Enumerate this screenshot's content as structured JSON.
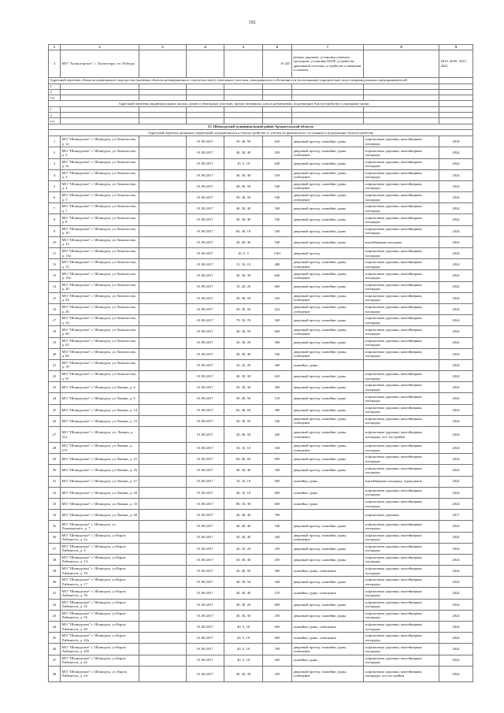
{
  "page_number": "192",
  "header_columns": [
    "1",
    "2",
    "3",
    "4",
    "5",
    "6",
    "7",
    "8",
    "9"
  ],
  "prev_row": {
    "num": "4",
    "address": "МО \"Холмогорское\" с. Холмогоры, пл. Победы",
    "area": "10 245",
    "works": "ремонт дорожек, установка уличных тротуаров, установка МАФ, устройство дренажной системы, устройство освещения и скамеек",
    "years": "2019, 2020, 2021, 2022"
  },
  "section_a_title": "Адресный перечень объектов недвижимого имущества (включая объекты незавершенного строительства) и земельных участков, находящихся в собственности (пользовании) юридических лиц и индивидуальных предпринимателей",
  "section_b_title": "Адресный перечень индивидуальных жилых домов и земельных участков, предоставленных для их размещения, подлежащих благоустройству в указанные сроки",
  "empty_row_labels": [
    "1",
    "2",
    "т.д."
  ],
  "district_title": "25. Шенкурский муниципальный район Архангельской области",
  "district_subtitle": "Адресный перечень дворовых территорий, нуждающихся в благоустройстве (с учетом их физического состояния) и подлежащих благоустройству",
  "rows": [
    [
      "1",
      "МО \"Шенкурское\" г. Шенкурск, ул Ломоносова, д. 1а",
      "",
      "01.08.2017",
      "50, 40, 50",
      "620",
      "дворовый проезд, скамейки, урны",
      "асфальтовые дорожки, контейнерная площадка",
      "2018"
    ],
    [
      "2",
      "МО \"Шенкурское\" г. Шенкурск, ул Ломоносова, д. 2",
      "",
      "01.08.2017",
      "40, 30, 40",
      "450",
      "дворовый проезд, скамейки, урны, освещение",
      "асфальтовые дорожки, контейнерная площадка",
      "2024"
    ],
    [
      "3",
      "МО \"Шенкурское\" г. Шенкурск, ул Ломоносова, д. 3а",
      "",
      "01.08.2017",
      "10, 5, 10",
      "640",
      "дворовый проезд, скамейки, урны",
      "асфальтовые дорожки, контейнерная площадка",
      "2024"
    ],
    [
      "4",
      "МО \"Шенкурское\" г. Шенкурск, ул Ломоносова, д. 3",
      "",
      "01.08.2017",
      "40, 30, 40",
      "530",
      "дворовый проезд, скамейки, урны, освещение",
      "асфальтовые дорожки, контейнерная площадка",
      "2024"
    ],
    [
      "5",
      "МО \"Шенкурское\" г. Шенкурск, ул Ломоносова, д. 4",
      "",
      "01.08.2017",
      "40, 40, 50",
      "540",
      "дворовый проезд, скамейки, урны, освещение",
      "асфальтовые дорожки, контейнерная площадка",
      "2024"
    ],
    [
      "6",
      "МО \"Шенкурское\" г. Шенкурск, ул Ломоносова, д. 5",
      "",
      "01.08.2017",
      "50, 30, 50",
      "540",
      "дворовый проезд, скамейки, урны, освещение",
      "асфальтовые дорожки, контейнерная площадка",
      "2024"
    ],
    [
      "7",
      "МО \"Шенкурское\" г. Шенкурск, ул Ломоносова, д. 7",
      "",
      "01.08.2017",
      "40, 30, 40",
      "540",
      "дворовый проезд, скамейки, урны",
      "асфальтовые дорожки, контейнерная площадка",
      "2024"
    ],
    [
      "8",
      "МО \"Шенкурское\" г. Шенкурск, ул Ломоносова, д. 8",
      "",
      "01.08.2017",
      "40, 30, 40",
      "540",
      "дворовый проезд, скамейки, урны",
      "асфальтовые дорожки, контейнерная площадка",
      "2024"
    ],
    [
      "9",
      "МО \"Шенкурское\" г. Шенкурск, ул Ломоносова, д. 10",
      "",
      "01.08.2017",
      "60, 30, 10",
      "540",
      "дворовый проезд, скамейки, урны",
      "асфальтовые дорожки, контейнерная площадка",
      "2024"
    ],
    [
      "10",
      "МО \"Шенкурское\" г. Шенкурск, ул Ломоносова, д. 12",
      "",
      "01.08.2017",
      "20, 40, 40",
      "540",
      "дворовый проезд, скамейки, урны",
      "контейнерная площадка",
      "2024"
    ],
    [
      "11",
      "МО \"Шенкурское\" г. Шенкурск, ул Ломоносова, д. 13а",
      "",
      "01.08.2017",
      "10, 5, 5",
      "1301",
      "дворовый проезд",
      "асфальтовые дорожки, контейнерная площадка",
      "2024"
    ],
    [
      "12",
      "МО \"Шенкурское\" г. Шенкурск, ул Ломоносова, д. 15",
      "",
      "01.08.2017",
      "15, 10, 10",
      "480",
      "дворовый проезд, скамейки, урны, освещение",
      "асфальтовые дорожки, контейнерная площадка",
      "2024"
    ],
    [
      "13",
      "МО \"Шенкурское\" г. Шенкурск, ул Ломоносова, д. 19а",
      "",
      "01.08.2017",
      "30, 30, 30",
      "640",
      "дворовый проезд, скамейки, урны, освещение",
      "асфальтовые дорожки, контейнерная площадка",
      "2024"
    ],
    [
      "14",
      "МО \"Шенкурское\" г. Шенкурск, ул Ломоносова, д. 20",
      "",
      "01.08.2017",
      "10, 20, 20",
      "600",
      "дворовый проезд, скамейки, урны",
      "асфальтовые дорожки, контейнерная площадка",
      "2024"
    ],
    [
      "15",
      "МО \"Шенкурское\" г. Шенкурск, ул Ломоносова, д. 24",
      "",
      "01.08.2017",
      "30, 30, 50",
      "335",
      "дворовый проезд, скамейки, урны, освещение",
      "асфальтовые дорожки, контейнерная площадка",
      "2024"
    ],
    [
      "16",
      "МО \"Шенкурское\" г. Шенкурск, ул Ломоносова, д. 26",
      "",
      "01.08.2017",
      "50, 30, 50",
      "422",
      "дворовый проезд, скамейки, урны, освещение",
      "асфальтовые дорожки, контейнерная площадка",
      "2024"
    ],
    [
      "17",
      "МО \"Шенкурское\" г. Шенкурск, ул Ломоносова, д. 34",
      "",
      "01.08.2017",
      "70, 50, 70",
      "300",
      "дворовый проезд, скамейки, урны",
      "асфальтовые дорожки, контейнерная площадка",
      "2024"
    ],
    [
      "18",
      "МО \"Шенкурское\" г. Шенкурск, ул Ломоносова, д. 60",
      "",
      "01.08.2017",
      "40, 30, 50",
      "600",
      "дворовый проезд, скамейки, урны, освещение",
      "асфальтовые дорожки, контейнерная площадка",
      "2024"
    ],
    [
      "19",
      "МО \"Шенкурское\" г. Шенкурск, ул Ломоносова, д. 62",
      "",
      "01.08.2017",
      "20, 30, 20",
      "300",
      "дворовый проезд, скамейки, урны",
      "асфальтовые дорожки, контейнерная площадка",
      "2024"
    ],
    [
      "20",
      "МО \"Шенкурское\" г. Шенкурск, ул Ломоносова, д. 66",
      "",
      "01.08.2017",
      "40, 30, 40",
      "540",
      "дворовый проезд, скамейки, урны, освещение",
      "асфальтовые дорожки, контейнерная площадка",
      "2024"
    ],
    [
      "21",
      "МО \"Шенкурское\" г. Шенкурск, ул Ломоносова, д. 70",
      "",
      "01.08.2017",
      "10, 10, 20",
      "440",
      "скамейки, урны",
      "",
      "2024"
    ],
    [
      "22",
      "МО \"Шенкурское\" г. Шенкурск, ул Ломоносова, д. 91",
      "",
      "01.08.2017",
      "40, 30, 30",
      "620",
      "дворовый проезд, скамейки, урны",
      "асфальтовые дорожки, контейнерная площадка",
      "2024"
    ],
    [
      "23",
      "МО \"Шенкурское\" г. Шенкурск, ул Ленина, д. 4",
      "",
      "01.08.2017",
      "50, 30, 30",
      "300",
      "дворовый проезд, скамейки, урны",
      "асфальтовые дорожки, контейнерная площадка",
      "2024"
    ],
    [
      "24",
      "МО \"Шенкурское\" г. Шенкурск, ул Ленина, д. 6",
      "",
      "01.08.2017",
      "50, 40, 50",
      "150",
      "дворовый проезд, скамейки, урны",
      "асфальтовые дорожки, контейнерная площадка",
      "2024"
    ],
    [
      "25",
      "МО \"Шенкурское\" г. Шенкурск, ул Ленина, д. 14",
      "",
      "01.08.2017",
      "60, 40, 60",
      "380",
      "дворовый проезд, скамейки, урны",
      "асфальтовые дорожки, контейнерная площадка",
      "2024"
    ],
    [
      "26",
      "МО \"Шенкурское\" г. Шенкурск, ул Ленина, д. 15",
      "",
      "01.08.2017",
      "30, 30, 50",
      "540",
      "дворовый проезд, скамейки, урны, освещение",
      "асфальтовые дорожки, контейнерная площадка",
      "2024"
    ],
    [
      "27",
      "МО \"Шенкурское\" г. Шенкурск, ул. Ленина, д. 21а",
      "",
      "01.08.2017",
      "20, 40, 50",
      "440",
      "дворовый проезд, скамейки, урны, освещение",
      "асфальтовые дорожки, контейнерная площадка, хоз. постройки",
      "2024"
    ],
    [
      "28",
      "МО \"Шенкурское\" г. Шенкурск, ул Ленина, д. 27б",
      "",
      "01.08.2017",
      "10, 10, 10",
      "330",
      "дворовый проезд, скамейки, урны, освещение",
      "асфальтовые дорожки, контейнерная площадка",
      "2024"
    ],
    [
      "29",
      "МО \"Шенкурское\" г. Шенкурск, ул Ленина, д. 25",
      "",
      "01.08.2017",
      "60, 60, 60",
      "600",
      "дворовый проезд, скамейки, урны",
      "асфальтовые дорожки, контейнерная площадка",
      "2024"
    ],
    [
      "30",
      "МО \"Шенкурское\" г. Шенкурск, ул Ленина, д. 26",
      "",
      "01.08.2017",
      "40, 30, 40",
      "340",
      "дворовый проезд, скамейки, урны",
      "асфальтовые дорожки, контейнерная площадка",
      "2024"
    ],
    [
      "31",
      "МО \"Шенкурское\" г. Шенкурск, ул Ленина, д. 27",
      "",
      "01.08.2017",
      "10, 10, 10",
      "600",
      "скамейки, урны",
      "контейнерная площадка, ограждение",
      "2024"
    ],
    [
      "32",
      "МО \"Шенкурское\" г. Шенкурск, ул Ленина, д. 28",
      "",
      "01.08.2017",
      "40, 10, 10",
      "600",
      "скамейки, урны",
      "асфальтовые дорожки, контейнерная площадка",
      "2024"
    ],
    [
      "33",
      "МО \"Шенкурское\" г. Шенкурск, ул Ленина, д. 33",
      "",
      "01.08.2017",
      "80, 10, 30",
      "600",
      "скамейки, урны",
      "асфальтовые дорожки, контейнерная площадка",
      "2024"
    ],
    [
      "34",
      "МО \"Шенкурское\" г. Шенкурск, ул Ленина, д. 68",
      "",
      "01.08.2017",
      "40, 40, 40",
      "700",
      "",
      "асфальтовые дорожки",
      "2017"
    ],
    [
      "35",
      "МО \"Шенкурское\" г. Шенкурск, ул Луначарского, д. 7",
      "",
      "01.08.2017",
      "40, 40, 40",
      "540",
      "дворовый проезд, скамейки, урны",
      "асфальтовые дорожки, контейнерная площадка",
      "2024"
    ],
    [
      "36",
      "МО \"Шенкурское\" г. Шенкурск, ул Карла Либкнехта, д. 2а",
      "",
      "01.08.2017",
      "50, 30, 40",
      "340",
      "дворовый проезд, скамейки, урны, освещение",
      "асфальтовые дорожки, контейнерная площадка",
      "2024"
    ],
    [
      "37",
      "МО \"Шенкурское\" г. Шенкурск, ул Карла Либкнехта, д. 4",
      "",
      "01.08.2017",
      "20, 10, 20",
      "250",
      "дворовый проезд, скамейки, урны",
      "асфальтовые дорожки, контейнерная площадка",
      "2024"
    ],
    [
      "38",
      "МО \"Шенкурское\" г. Шенкурск, ул Карла Либкнехта, д. 14",
      "",
      "01.08.2017",
      "50, 30, 40",
      "250",
      "дворовый проезд, скамейки, урны",
      "асфальтовые дорожки, контейнерная площадка",
      "2024"
    ],
    [
      "39",
      "МО \"Шенкурское\" г. Шенкурск, ул Карла Либкнехта, д. 16",
      "",
      "01.08.2017",
      "20, 40, 50",
      "300",
      "скамейки, урны, освещение",
      "асфальтовые дорожки, контейнерная площадка",
      "2024"
    ],
    [
      "40",
      "МО \"Шенкурское\" г. Шенкурск, ул Карла Либкнехта, д. 17",
      "",
      "01.08.2017",
      "40, 30, 50",
      "340",
      "дворовый проезд, скамейки, урны",
      "асфальтовые дорожки, контейнерная площадка",
      "2024"
    ],
    [
      "41",
      "МО \"Шенкурское\" г. Шенкурск, ул Карла Либкнехта, д. 30",
      "",
      "01.08.2017",
      "40, 30, 40",
      "270",
      "скамейки, урны, освещение",
      "асфальтовые дорожки, контейнерная площадка",
      "2024"
    ],
    [
      "42",
      "МО \"Шенкурское\" г. Шенкурск, ул Карла Либкнехта, д. 32",
      "",
      "01.08.2017",
      "40, 30, 20",
      "600",
      "дворовый проезд, скамейки, урны",
      "асфальтовые дорожки, контейнерная площадка",
      "2024"
    ],
    [
      "43",
      "МО \"Шенкурское\" г. Шенкурск, ул Карла Либкнехта, д. 35",
      "",
      "01.08.2017",
      "30, 30, 30",
      "250",
      "дворовый проезд, скамейки, урны",
      "асфальтовые дорожки, контейнерная площадка",
      "2024"
    ],
    [
      "44",
      "МО \"Шенкурское\" г. Шенкурск, ул Карла Либкнехта, д. 40",
      "",
      "01.08.2017",
      "40, 5, 10",
      "600",
      "скамейки, урны, освещение",
      "асфальтовые дорожки, контейнерная площадка",
      "2024"
    ],
    [
      "45",
      "МО \"Шенкурское\" г. Шенкурск, ул Карла Либкнехта, д. 42а",
      "",
      "01.08.2017",
      "20, 5, 10",
      "600",
      "скамейки, урны, освещение",
      "асфальтовые дорожки, контейнерная площадка",
      "2024"
    ],
    [
      "46",
      "МО \"Шенкурское\" г. Шенкурск, ул Карла Либкнехта, д. 42б",
      "",
      "01.08.2017",
      "40, 5, 10",
      "700",
      "дворовый проезд, скамейки, урны, освещение",
      "асфальтовые дорожки, контейнерная площадка",
      "2024"
    ],
    [
      "47",
      "МО \"Шенкурское\" г. Шенкурск, ул Карла Либкнехта, д. 42",
      "",
      "01.08.2017",
      "40, 5, 10",
      "450",
      "скамейки, урны",
      "асфальтовые дорожки, контейнерная площадка",
      "2024"
    ],
    [
      "48",
      "МО \"Шенкурское\" г. Шенкурск, ул. Карла Либкнехта, д. 44",
      "",
      "01.08.2017",
      "40, 30, 30",
      "350",
      "дворовый проезд, скамейки, урны, освещение",
      "асфальтовые дорожки, контейнерная площадка, хоз.постройки",
      "2024"
    ]
  ]
}
